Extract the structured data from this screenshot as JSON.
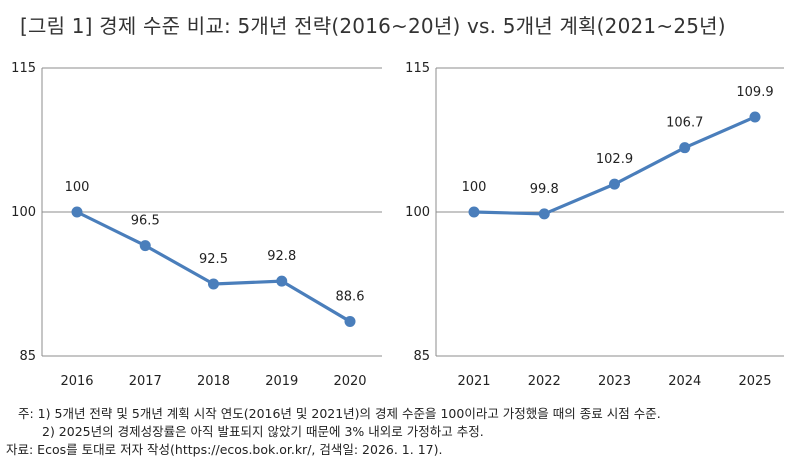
{
  "title": "[그림 1] 경제 수준 비교: 5개년 전략(2016~20년) vs. 5개년 계획(2021~25년)",
  "chart_data": [
    {
      "type": "line",
      "categories": [
        "2016",
        "2017",
        "2018",
        "2019",
        "2020"
      ],
      "values": [
        100,
        96.5,
        92.5,
        92.8,
        88.6
      ],
      "value_labels": [
        "100",
        "96.5",
        "92.5",
        "92.8",
        "88.6"
      ],
      "ylim": [
        85,
        115
      ],
      "yticks": [
        "85",
        "100",
        "115"
      ],
      "color": "#4a7ebb"
    },
    {
      "type": "line",
      "categories": [
        "2021",
        "2022",
        "2023",
        "2024",
        "2025"
      ],
      "values": [
        100,
        99.8,
        102.9,
        106.7,
        109.9
      ],
      "value_labels": [
        "100",
        "99.8",
        "102.9",
        "106.7",
        "109.9"
      ],
      "ylim": [
        85,
        115
      ],
      "yticks": [
        "85",
        "100",
        "115"
      ],
      "color": "#4a7ebb"
    }
  ],
  "notes": {
    "line1": "주: 1) 5개년 전략 및 5개년 계획 시작 연도(2016년 및 2021년)의 경제 수준을 100이라고 가정했을 때의 종료 시점 수준.",
    "line2": "2) 2025년의 경제성장률은 아직 발표되지 않았기 때문에 3% 내외로 가정하고 추정.",
    "source": "자료: Ecos를 토대로 저자 작성(https://ecos.bok.or.kr/, 검색일: 2026. 1. 17)."
  }
}
